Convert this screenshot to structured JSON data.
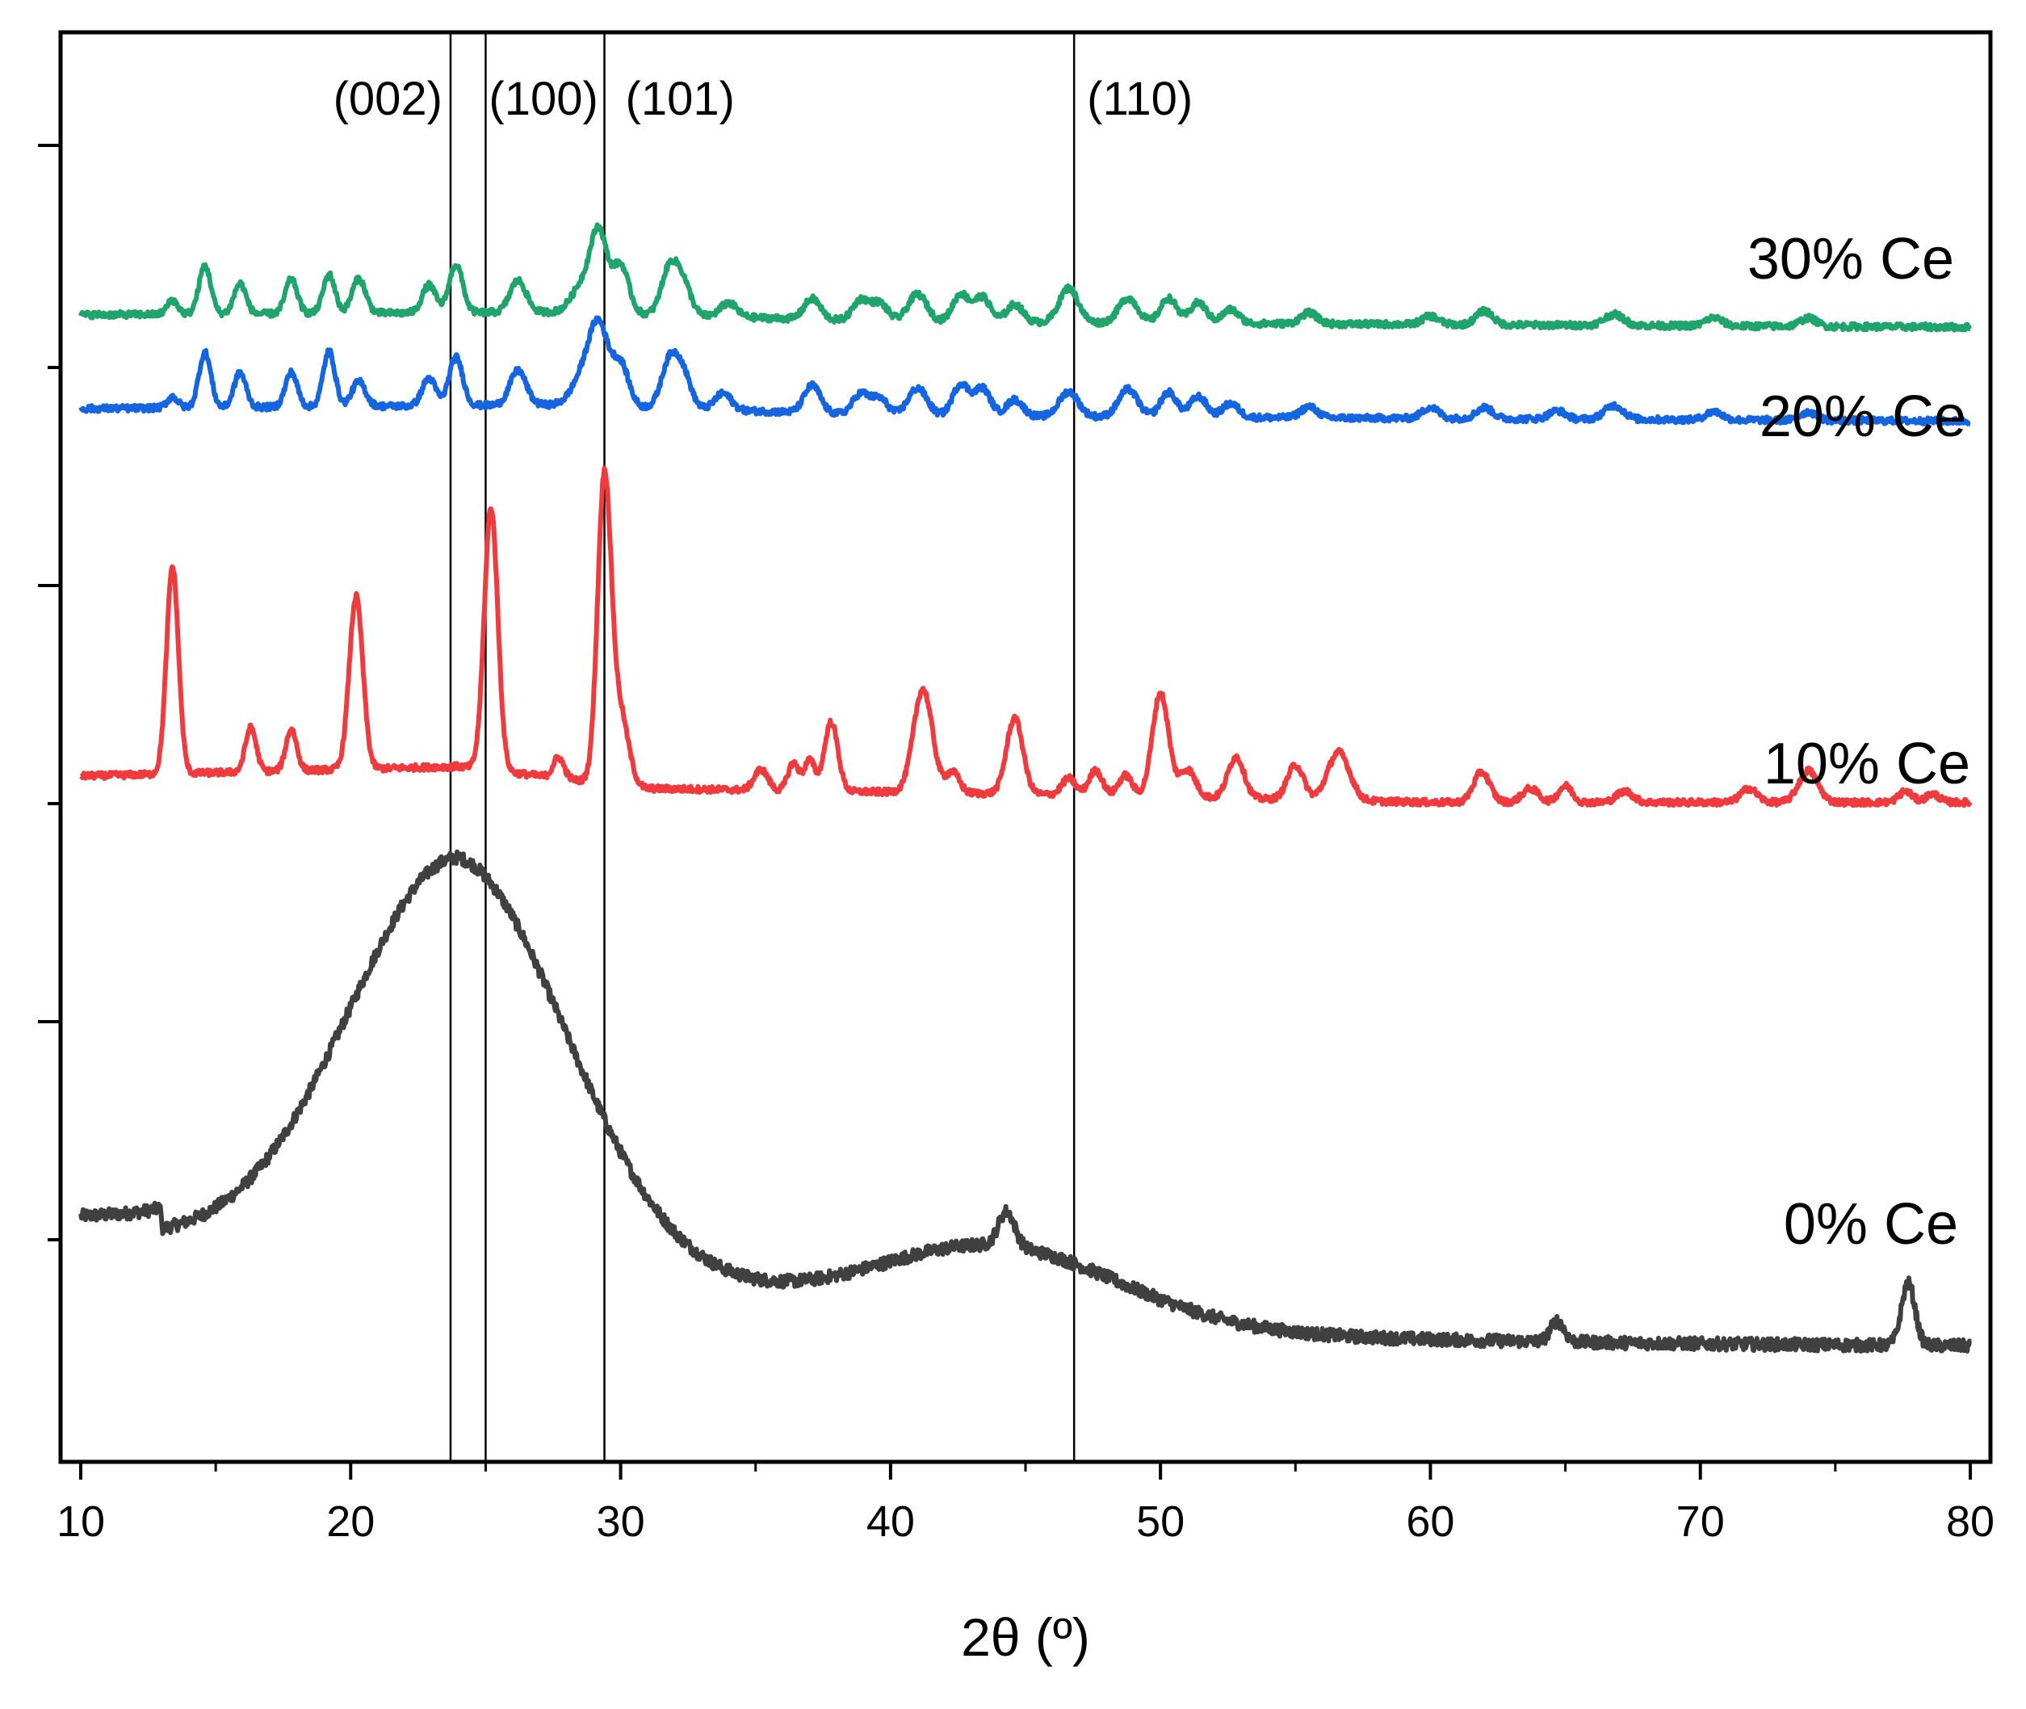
{
  "chart_data": {
    "type": "line",
    "title": "",
    "xlabel": "2θ (º)",
    "ylabel": "",
    "xlim": [
      10,
      80
    ],
    "ylim": [
      0,
      100
    ],
    "x_ticks": [
      10,
      20,
      30,
      40,
      50,
      60,
      70,
      80
    ],
    "grid": false,
    "legend": "inline labels at right end of each curve",
    "reference_lines": [
      {
        "x": 23.7,
        "label": "(002)"
      },
      {
        "x": 25.0,
        "label": "(100)"
      },
      {
        "x": 29.4,
        "label": "(101)"
      },
      {
        "x": 46.8,
        "label": "(110)"
      }
    ],
    "series": [
      {
        "name": "0% Ce",
        "color": "#404040",
        "baseline": 6.5,
        "offset": 0,
        "broad": [
          {
            "c": 24.0,
            "h": 27.5,
            "w": 4.0
          },
          {
            "c": 44.0,
            "h": 5.5,
            "w": 4.5
          }
        ],
        "peaks": [
          {
            "c": 44.3,
            "h": 2.5,
            "w": 0.3
          },
          {
            "c": 64.7,
            "h": 1.5,
            "w": 0.25
          },
          {
            "c": 77.7,
            "h": 4.5,
            "w": 0.25
          }
        ]
      },
      {
        "name": "10% Ce",
        "color": "#ef3b3e",
        "baseline": 0,
        "offset": 44,
        "peaks": [
          {
            "c": 13.4,
            "h": 15.0,
            "w": 0.22
          },
          {
            "c": 16.3,
            "h": 3.2,
            "w": 0.2
          },
          {
            "c": 17.8,
            "h": 3.0,
            "w": 0.2
          },
          {
            "c": 20.2,
            "h": 12.5,
            "w": 0.25
          },
          {
            "c": 25.2,
            "h": 19.0,
            "w": 0.25
          },
          {
            "c": 27.7,
            "h": 1.5,
            "w": 0.2
          },
          {
            "c": 29.4,
            "h": 22.0,
            "w": 0.25
          },
          {
            "c": 30.0,
            "h": 5.0,
            "w": 0.3
          },
          {
            "c": 35.2,
            "h": 1.5,
            "w": 0.25
          },
          {
            "c": 36.4,
            "h": 2.0,
            "w": 0.2
          },
          {
            "c": 37.0,
            "h": 2.2,
            "w": 0.2
          },
          {
            "c": 37.8,
            "h": 5.0,
            "w": 0.25
          },
          {
            "c": 41.2,
            "h": 7.5,
            "w": 0.35
          },
          {
            "c": 42.3,
            "h": 1.5,
            "w": 0.25
          },
          {
            "c": 44.6,
            "h": 5.5,
            "w": 0.3
          },
          {
            "c": 46.6,
            "h": 1.2,
            "w": 0.25
          },
          {
            "c": 47.6,
            "h": 1.8,
            "w": 0.25
          },
          {
            "c": 48.7,
            "h": 1.5,
            "w": 0.25
          },
          {
            "c": 50.0,
            "h": 7.5,
            "w": 0.3
          },
          {
            "c": 51.0,
            "h": 2.0,
            "w": 0.3
          },
          {
            "c": 52.8,
            "h": 3.0,
            "w": 0.3
          },
          {
            "c": 55.0,
            "h": 2.5,
            "w": 0.3
          },
          {
            "c": 56.6,
            "h": 3.5,
            "w": 0.4
          },
          {
            "c": 61.9,
            "h": 2.2,
            "w": 0.3
          },
          {
            "c": 63.7,
            "h": 1.0,
            "w": 0.3
          },
          {
            "c": 65.0,
            "h": 1.2,
            "w": 0.25
          },
          {
            "c": 67.2,
            "h": 0.8,
            "w": 0.3
          },
          {
            "c": 71.8,
            "h": 1.0,
            "w": 0.3
          },
          {
            "c": 74.0,
            "h": 2.3,
            "w": 0.35
          },
          {
            "c": 77.6,
            "h": 0.8,
            "w": 0.25
          },
          {
            "c": 78.6,
            "h": 0.6,
            "w": 0.25
          }
        ],
        "slope": [
          {
            "x": 10,
            "y": 3.9
          },
          {
            "x": 24,
            "y": 4.6
          },
          {
            "x": 31,
            "y": 3.0
          },
          {
            "x": 45,
            "y": 2.6
          },
          {
            "x": 60,
            "y": 2.0
          },
          {
            "x": 80,
            "y": 2.0
          }
        ]
      },
      {
        "name": "20% Ce",
        "color": "#1565e0",
        "baseline": 0,
        "offset": 73,
        "peaks": [
          {
            "c": 13.4,
            "h": 0.8,
            "w": 0.2
          },
          {
            "c": 14.6,
            "h": 4.0,
            "w": 0.22
          },
          {
            "c": 15.9,
            "h": 2.5,
            "w": 0.22
          },
          {
            "c": 17.8,
            "h": 2.5,
            "w": 0.22
          },
          {
            "c": 19.2,
            "h": 4.0,
            "w": 0.22
          },
          {
            "c": 20.3,
            "h": 1.8,
            "w": 0.25
          },
          {
            "c": 22.9,
            "h": 2.0,
            "w": 0.25
          },
          {
            "c": 23.9,
            "h": 3.5,
            "w": 0.25
          },
          {
            "c": 26.2,
            "h": 2.5,
            "w": 0.3
          },
          {
            "c": 28.6,
            "h": 2.0,
            "w": 0.4
          },
          {
            "c": 29.2,
            "h": 5.5,
            "w": 0.35
          },
          {
            "c": 30.0,
            "h": 3.0,
            "w": 0.3
          },
          {
            "c": 31.8,
            "h": 3.2,
            "w": 0.3
          },
          {
            "c": 32.3,
            "h": 2.5,
            "w": 0.3
          },
          {
            "c": 33.8,
            "h": 1.2,
            "w": 0.3
          },
          {
            "c": 37.1,
            "h": 2.0,
            "w": 0.3
          },
          {
            "c": 38.9,
            "h": 1.5,
            "w": 0.3
          },
          {
            "c": 39.6,
            "h": 1.2,
            "w": 0.3
          },
          {
            "c": 41.0,
            "h": 2.0,
            "w": 0.35
          },
          {
            "c": 42.6,
            "h": 2.3,
            "w": 0.3
          },
          {
            "c": 43.4,
            "h": 2.0,
            "w": 0.3
          },
          {
            "c": 44.6,
            "h": 1.2,
            "w": 0.3
          },
          {
            "c": 46.6,
            "h": 1.8,
            "w": 0.35
          },
          {
            "c": 48.8,
            "h": 2.0,
            "w": 0.35
          },
          {
            "c": 50.3,
            "h": 1.8,
            "w": 0.3
          },
          {
            "c": 51.4,
            "h": 1.5,
            "w": 0.3
          },
          {
            "c": 52.6,
            "h": 1.0,
            "w": 0.3
          },
          {
            "c": 55.5,
            "h": 0.8,
            "w": 0.3
          },
          {
            "c": 60.0,
            "h": 0.8,
            "w": 0.3
          },
          {
            "c": 62.0,
            "h": 0.8,
            "w": 0.3
          },
          {
            "c": 64.7,
            "h": 0.6,
            "w": 0.3
          },
          {
            "c": 66.8,
            "h": 1.0,
            "w": 0.35
          },
          {
            "c": 70.5,
            "h": 0.6,
            "w": 0.3
          },
          {
            "c": 74.0,
            "h": 0.6,
            "w": 0.3
          }
        ],
        "slope": [
          {
            "x": 10,
            "y": 1.5
          },
          {
            "x": 28,
            "y": 1.8
          },
          {
            "x": 40,
            "y": 1.0
          },
          {
            "x": 80,
            "y": 0.6
          }
        ]
      },
      {
        "name": "30% Ce",
        "color": "#1fa56c",
        "baseline": 0,
        "offset": 80,
        "peaks": [
          {
            "c": 13.4,
            "h": 1.0,
            "w": 0.2
          },
          {
            "c": 14.6,
            "h": 3.5,
            "w": 0.22
          },
          {
            "c": 15.9,
            "h": 2.2,
            "w": 0.22
          },
          {
            "c": 17.8,
            "h": 2.5,
            "w": 0.22
          },
          {
            "c": 19.2,
            "h": 2.8,
            "w": 0.22
          },
          {
            "c": 20.3,
            "h": 2.5,
            "w": 0.25
          },
          {
            "c": 22.9,
            "h": 2.0,
            "w": 0.25
          },
          {
            "c": 23.9,
            "h": 3.5,
            "w": 0.25
          },
          {
            "c": 26.2,
            "h": 2.3,
            "w": 0.3
          },
          {
            "c": 28.6,
            "h": 2.0,
            "w": 0.4
          },
          {
            "c": 29.2,
            "h": 5.5,
            "w": 0.3
          },
          {
            "c": 30.0,
            "h": 3.5,
            "w": 0.3
          },
          {
            "c": 31.8,
            "h": 3.2,
            "w": 0.3
          },
          {
            "c": 32.3,
            "h": 2.3,
            "w": 0.3
          },
          {
            "c": 34.0,
            "h": 1.0,
            "w": 0.3
          },
          {
            "c": 37.1,
            "h": 1.5,
            "w": 0.3
          },
          {
            "c": 38.9,
            "h": 1.5,
            "w": 0.3
          },
          {
            "c": 39.6,
            "h": 1.3,
            "w": 0.3
          },
          {
            "c": 41.0,
            "h": 2.0,
            "w": 0.35
          },
          {
            "c": 42.6,
            "h": 2.0,
            "w": 0.3
          },
          {
            "c": 43.4,
            "h": 1.8,
            "w": 0.3
          },
          {
            "c": 44.6,
            "h": 1.3,
            "w": 0.3
          },
          {
            "c": 46.6,
            "h": 2.5,
            "w": 0.35
          },
          {
            "c": 48.8,
            "h": 1.8,
            "w": 0.35
          },
          {
            "c": 50.3,
            "h": 1.8,
            "w": 0.3
          },
          {
            "c": 51.4,
            "h": 1.5,
            "w": 0.3
          },
          {
            "c": 52.6,
            "h": 1.0,
            "w": 0.3
          },
          {
            "c": 55.5,
            "h": 0.8,
            "w": 0.3
          },
          {
            "c": 60.0,
            "h": 0.6,
            "w": 0.3
          },
          {
            "c": 62.0,
            "h": 1.0,
            "w": 0.3
          },
          {
            "c": 66.8,
            "h": 0.8,
            "w": 0.35
          },
          {
            "c": 70.5,
            "h": 0.6,
            "w": 0.3
          },
          {
            "c": 74.0,
            "h": 0.6,
            "w": 0.3
          }
        ],
        "slope": [
          {
            "x": 10,
            "y": 1.3
          },
          {
            "x": 28,
            "y": 1.5
          },
          {
            "x": 40,
            "y": 0.8
          },
          {
            "x": 80,
            "y": 0.4
          }
        ]
      }
    ]
  }
}
